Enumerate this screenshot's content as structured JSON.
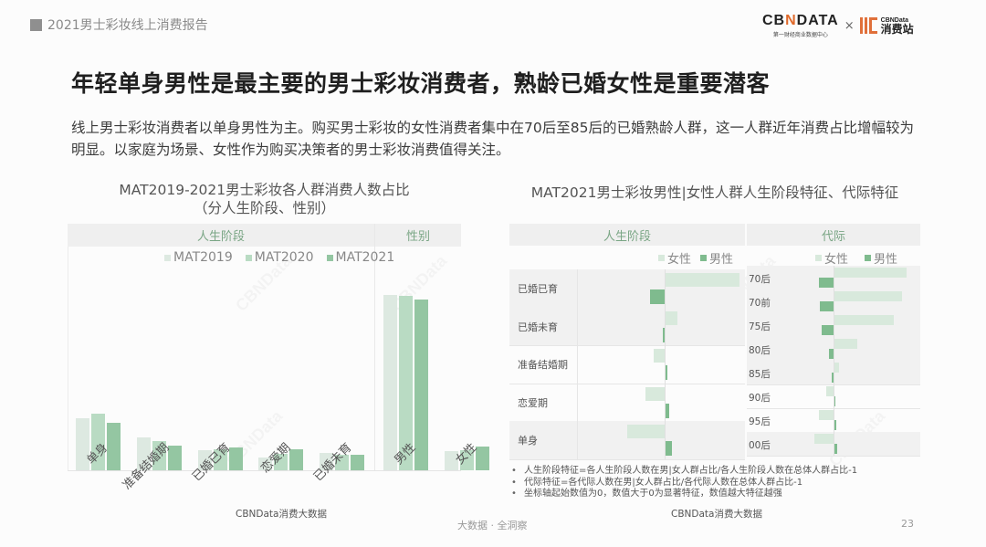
{
  "header": {
    "report_tag": "2021男士彩妆线上消费报告",
    "logo_cbn_word": "CBNDATA",
    "logo_cbn_sub": "第一财经商业数据中心",
    "logo_times": "×",
    "logo_xfz_en": "CBNData",
    "logo_xfz_cn": "消费站"
  },
  "title": "年轻单身男性是最主要的男士彩妆消费者，熟龄已婚女性是重要潜客",
  "description": "线上男士彩妆消费者以单身男性为主。购买男士彩妆的女性消费者集中在70后至85后的已婚熟龄人群，这一人群近年消费占比增幅较为明显。以家庭为场景、女性作为购买决策者的男士彩妆消费值得关注。",
  "left_chart": {
    "title_line1": "MAT2019-2021男士彩妆各人群消费人数占比",
    "title_line2": "（分人生阶段、性别）",
    "band_left": "人生阶段",
    "band_right": "性别",
    "legend": [
      "MAT2019",
      "MAT2020",
      "MAT2021"
    ],
    "source": "CBNData消费大数据"
  },
  "right_chart": {
    "title": "MAT2021男士彩妆男性|女性人群人生阶段特征、代际特征",
    "band_left": "人生阶段",
    "band_right": "代际",
    "legend": [
      "女性",
      "男性"
    ],
    "source": "CBNData消费大数据",
    "notes": [
      "人生阶段特征=各人生阶段人数在男|女人群占比/各人生阶段人数在总体人群占比-1",
      "代际特征=各代际人数在男|女人群占比/各代际人数在总体人群占比-1",
      "坐标轴起始数值为0，数值大于0为显著特征，数值越大特征越强"
    ]
  },
  "footer": {
    "center": "大数据 · 全洞察",
    "page": "23"
  },
  "colors": {
    "mat2019": "#dde9e1",
    "mat2020": "#b9dbc3",
    "mat2021": "#94c6a2",
    "female": "#d8e9dc",
    "male": "#7fbb8e",
    "band": "#efefef",
    "band_text": "#7aa685"
  },
  "chart_data": [
    {
      "type": "bar",
      "title": "MAT2019-2021男士彩妆各人群消费人数占比（分人生阶段、性别）",
      "xlabel": "",
      "ylabel": "",
      "groups": [
        {
          "name": "人生阶段",
          "categories": [
            "单身",
            "准备结婚期",
            "已婚已育",
            "恋爱期",
            "已婚未育"
          ]
        },
        {
          "name": "性别",
          "categories": [
            "男性",
            "女性"
          ]
        }
      ],
      "categories": [
        "单身",
        "准备结婚期",
        "已婚已育",
        "恋爱期",
        "已婚未育",
        "男性",
        "女性"
      ],
      "series": [
        {
          "name": "MAT2019",
          "values": [
            19.8,
            12.4,
            7.5,
            4.9,
            6.5,
            66.2,
            7.2
          ]
        },
        {
          "name": "MAT2020",
          "values": [
            21.3,
            10.9,
            7.9,
            6.3,
            6.0,
            66.0,
            7.5
          ]
        },
        {
          "name": "MAT2021",
          "values": [
            17.8,
            9.3,
            8.7,
            7.9,
            6.0,
            64.6,
            9.1
          ]
        }
      ],
      "ylim": [
        0,
        75
      ],
      "grid": false,
      "legend_position": "top",
      "note": "No numeric axis shown; values estimated as relative percentages from bar heights"
    },
    {
      "type": "bar",
      "orientation": "horizontal",
      "title": "MAT2021男士彩妆男性|女性人群人生阶段特征",
      "categories": [
        "已婚已育",
        "已婚未育",
        "准备结婚期",
        "恋爱期",
        "单身"
      ],
      "series": [
        {
          "name": "女性",
          "values": [
            1.0,
            0.17,
            -0.15,
            -0.26,
            -0.5
          ]
        },
        {
          "name": "男性",
          "values": [
            -0.19,
            -0.02,
            0.04,
            0.06,
            0.1
          ]
        }
      ],
      "zero_line": true,
      "legend_position": "top-right",
      "note": "Relative index (feature = share in gender group / share in total - 1); no axis labels shown, values normalized estimates"
    },
    {
      "type": "bar",
      "orientation": "horizontal",
      "title": "MAT2021男士彩妆男性|女性人群代际特征",
      "categories": [
        "70后",
        "70前",
        "75后",
        "80后",
        "85后",
        "90后",
        "95后",
        "00后"
      ],
      "series": [
        {
          "name": "女性",
          "values": [
            1.0,
            0.94,
            0.82,
            0.32,
            0.08,
            -0.1,
            -0.2,
            -0.26
          ]
        },
        {
          "name": "男性",
          "values": [
            -0.2,
            -0.19,
            -0.16,
            -0.06,
            -0.02,
            0.01,
            0.04,
            0.05
          ]
        }
      ],
      "zero_line": true,
      "legend_position": "top-right",
      "note": "Relative index; no axis labels shown, values normalized estimates"
    }
  ]
}
